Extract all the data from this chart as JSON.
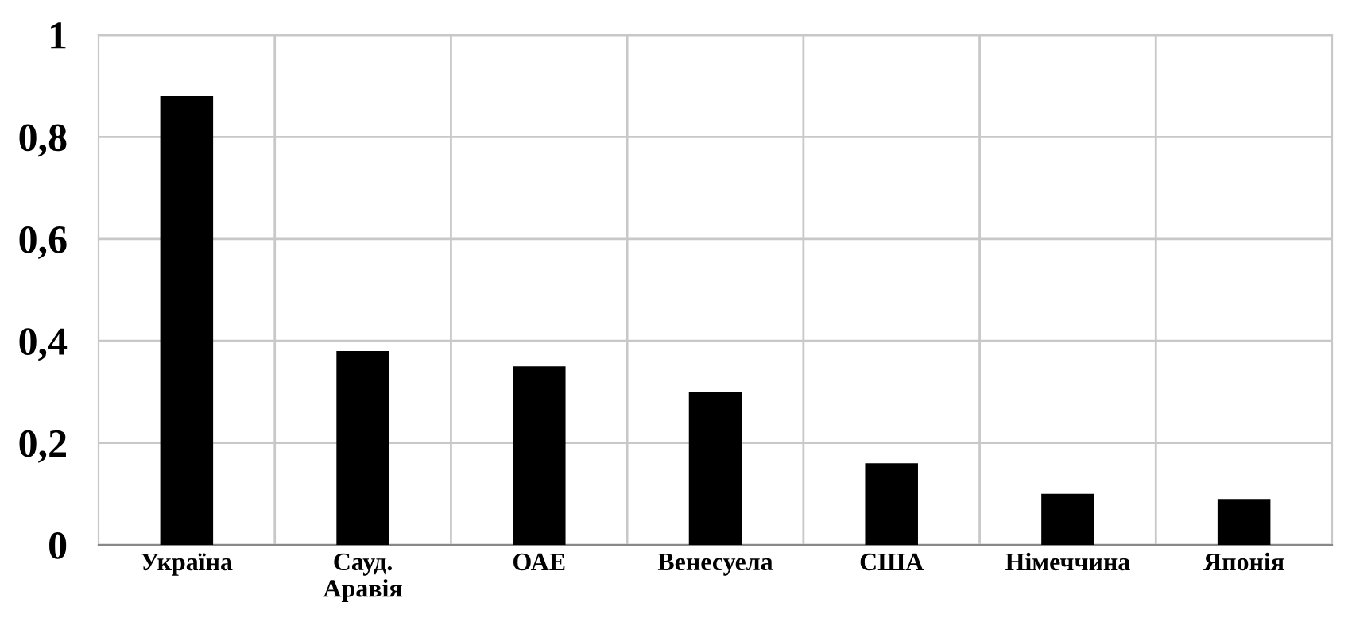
{
  "chart_data": {
    "type": "bar",
    "categories": [
      "Україна",
      "Сауд.\nАравія",
      "ОАЕ",
      "Венесуела",
      "США",
      "Німеччина",
      "Японія"
    ],
    "values": [
      0.88,
      0.38,
      0.35,
      0.3,
      0.16,
      0.1,
      0.09
    ],
    "color": "#000000",
    "ylim": [
      0,
      1
    ],
    "yticks": [
      0,
      {
        "value": 0.2,
        "label": "0,2"
      },
      {
        "value": 0.4,
        "label": "0,4"
      },
      {
        "value": 0.6,
        "label": "0,6"
      },
      {
        "value": 0.8,
        "label": "0,8"
      },
      1
    ],
    "grid": true,
    "legend": false
  }
}
